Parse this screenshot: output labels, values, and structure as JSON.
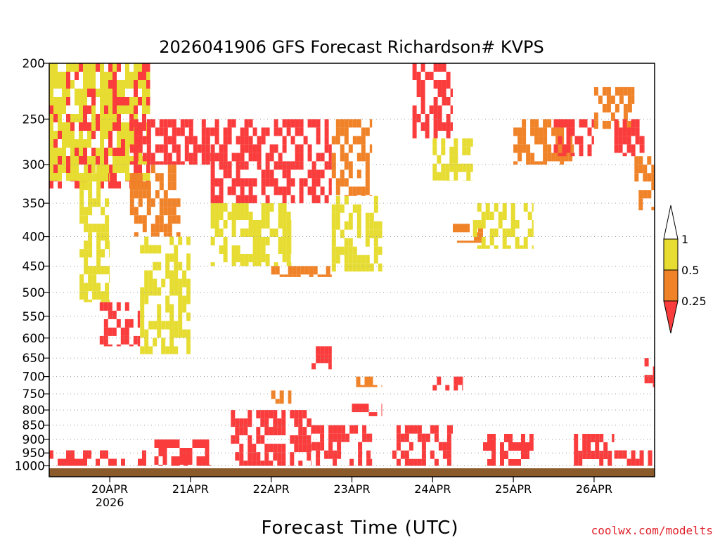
{
  "chart_data": {
    "type": "heatmap",
    "title": "2026041906 GFS Forecast Richardson# KVPS",
    "xlabel": "Forecast Time (UTC)",
    "ylabel": "",
    "y_scale": "log",
    "y_range": [
      1010,
      200
    ],
    "y_ticks": [
      200,
      250,
      300,
      350,
      400,
      450,
      500,
      550,
      600,
      650,
      700,
      750,
      800,
      850,
      900,
      950,
      1000
    ],
    "x_range": [
      "2026-04-19T06:00",
      "2026-04-26T18:00"
    ],
    "x_ticks": [
      {
        "date": "2026-04-20T00:00",
        "label": "20APR",
        "sublabel": "2026"
      },
      {
        "date": "2026-04-21T00:00",
        "label": "21APR",
        "sublabel": ""
      },
      {
        "date": "2026-04-22T00:00",
        "label": "22APR",
        "sublabel": ""
      },
      {
        "date": "2026-04-23T00:00",
        "label": "23APR",
        "sublabel": ""
      },
      {
        "date": "2026-04-24T00:00",
        "label": "24APR",
        "sublabel": ""
      },
      {
        "date": "2026-04-25T00:00",
        "label": "25APR",
        "sublabel": ""
      },
      {
        "date": "2026-04-26T00:00",
        "label": "26APR",
        "sublabel": ""
      }
    ],
    "grid": "dotted horizontal at pressure ticks",
    "colorbar": {
      "levels": [
        "1",
        "0.5",
        "0.25"
      ],
      "bins": [
        {
          "range": "0.5-1",
          "color": "#e6dc32"
        },
        {
          "range": "0.25-0.5",
          "color": "#f08228"
        },
        {
          "range": "<0.25",
          "color": "#fa3c3c"
        }
      ],
      "placement": "right"
    },
    "ground_color": "#8b5a2b",
    "regions": [
      {
        "t0": "2026-04-19T06:00",
        "t1": "2026-04-20T12:00",
        "p_top": 200,
        "p_bot": 330,
        "bin": "<0.25"
      },
      {
        "t0": "2026-04-19T06:00",
        "t1": "2026-04-20T12:00",
        "p_top": 200,
        "p_bot": 320,
        "bin": "0.5-1"
      },
      {
        "t0": "2026-04-19T15:00",
        "t1": "2026-04-20T00:00",
        "p_top": 300,
        "p_bot": 520,
        "bin": "0.5-1"
      },
      {
        "t0": "2026-04-19T21:00",
        "t1": "2026-04-20T09:00",
        "p_top": 520,
        "p_bot": 620,
        "bin": "<0.25"
      },
      {
        "t0": "2026-04-20T06:00",
        "t1": "2026-04-20T21:00",
        "p_top": 300,
        "p_bot": 400,
        "bin": "0.25-0.5"
      },
      {
        "t0": "2026-04-20T09:00",
        "t1": "2026-04-21T00:00",
        "p_top": 400,
        "p_bot": 640,
        "bin": "0.5-1"
      },
      {
        "t0": "2026-04-20T06:00",
        "t1": "2026-04-21T06:00",
        "p_top": 250,
        "p_bot": 300,
        "bin": "<0.25"
      },
      {
        "t0": "2026-04-21T06:00",
        "t1": "2026-04-22T18:00",
        "p_top": 250,
        "p_bot": 350,
        "bin": "<0.25"
      },
      {
        "t0": "2026-04-21T06:00",
        "t1": "2026-04-22T06:00",
        "p_top": 350,
        "p_bot": 450,
        "bin": "0.5-1"
      },
      {
        "t0": "2026-04-22T00:00",
        "t1": "2026-04-22T18:00",
        "p_top": 450,
        "p_bot": 470,
        "bin": "0.25-0.5"
      },
      {
        "t0": "2026-04-22T12:00",
        "t1": "2026-04-22T18:00",
        "p_top": 620,
        "p_bot": 680,
        "bin": "<0.25"
      },
      {
        "t0": "2026-04-22T00:00",
        "t1": "2026-04-22T06:00",
        "p_top": 740,
        "p_bot": 780,
        "bin": "0.25-0.5"
      },
      {
        "t0": "2026-04-22T18:00",
        "t1": "2026-04-23T06:00",
        "p_top": 250,
        "p_bot": 340,
        "bin": "0.25-0.5"
      },
      {
        "t0": "2026-04-22T18:00",
        "t1": "2026-04-23T09:00",
        "p_top": 340,
        "p_bot": 460,
        "bin": "0.5-1"
      },
      {
        "t0": "2026-04-23T00:00",
        "t1": "2026-04-23T09:00",
        "p_top": 700,
        "p_bot": 730,
        "bin": "0.25-0.5"
      },
      {
        "t0": "2026-04-23T00:00",
        "t1": "2026-04-23T09:00",
        "p_top": 780,
        "p_bot": 820,
        "bin": "<0.25"
      },
      {
        "t0": "2026-04-23T18:00",
        "t1": "2026-04-24T06:00",
        "p_top": 200,
        "p_bot": 270,
        "bin": "<0.25"
      },
      {
        "t0": "2026-04-24T00:00",
        "t1": "2026-04-24T12:00",
        "p_top": 270,
        "p_bot": 320,
        "bin": "0.5-1"
      },
      {
        "t0": "2026-04-24T00:00",
        "t1": "2026-04-24T09:00",
        "p_top": 700,
        "p_bot": 740,
        "bin": "<0.25"
      },
      {
        "t0": "2026-04-24T06:00",
        "t1": "2026-04-24T15:00",
        "p_top": 380,
        "p_bot": 410,
        "bin": "0.25-0.5"
      },
      {
        "t0": "2026-04-24T12:00",
        "t1": "2026-04-25T06:00",
        "p_top": 350,
        "p_bot": 420,
        "bin": "0.5-1"
      },
      {
        "t0": "2026-04-25T00:00",
        "t1": "2026-04-25T18:00",
        "p_top": 250,
        "p_bot": 300,
        "bin": "0.25-0.5"
      },
      {
        "t0": "2026-04-25T12:00",
        "t1": "2026-04-26T00:00",
        "p_top": 250,
        "p_bot": 290,
        "bin": "<0.25"
      },
      {
        "t0": "2026-04-26T00:00",
        "t1": "2026-04-26T12:00",
        "p_top": 220,
        "p_bot": 260,
        "bin": "0.25-0.5"
      },
      {
        "t0": "2026-04-26T06:00",
        "t1": "2026-04-26T15:00",
        "p_top": 250,
        "p_bot": 290,
        "bin": "<0.25"
      },
      {
        "t0": "2026-04-26T12:00",
        "t1": "2026-04-26T18:00",
        "p_top": 290,
        "p_bot": 360,
        "bin": "0.25-0.5"
      },
      {
        "t0": "2026-04-26T15:00",
        "t1": "2026-04-26T18:00",
        "p_top": 650,
        "p_bot": 730,
        "bin": "<0.25"
      },
      {
        "t0": "2026-04-19T06:00",
        "t1": "2026-04-20T12:00",
        "p_top": 940,
        "p_bot": 1000,
        "bin": "<0.25"
      },
      {
        "t0": "2026-04-20T12:00",
        "t1": "2026-04-21T06:00",
        "p_top": 900,
        "p_bot": 1000,
        "bin": "<0.25"
      },
      {
        "t0": "2026-04-21T12:00",
        "t1": "2026-04-22T12:00",
        "p_top": 800,
        "p_bot": 1000,
        "bin": "<0.25"
      },
      {
        "t0": "2026-04-22T12:00",
        "t1": "2026-04-23T06:00",
        "p_top": 850,
        "p_bot": 1000,
        "bin": "<0.25"
      },
      {
        "t0": "2026-04-23T12:00",
        "t1": "2026-04-24T06:00",
        "p_top": 850,
        "p_bot": 1000,
        "bin": "<0.25"
      },
      {
        "t0": "2026-04-24T15:00",
        "t1": "2026-04-25T06:00",
        "p_top": 880,
        "p_bot": 1000,
        "bin": "<0.25"
      },
      {
        "t0": "2026-04-25T18:00",
        "t1": "2026-04-26T06:00",
        "p_top": 880,
        "p_bot": 1000,
        "bin": "<0.25"
      },
      {
        "t0": "2026-04-26T06:00",
        "t1": "2026-04-26T18:00",
        "p_top": 940,
        "p_bot": 1000,
        "bin": "<0.25"
      }
    ]
  },
  "credit": "coolwx.com/modelts"
}
